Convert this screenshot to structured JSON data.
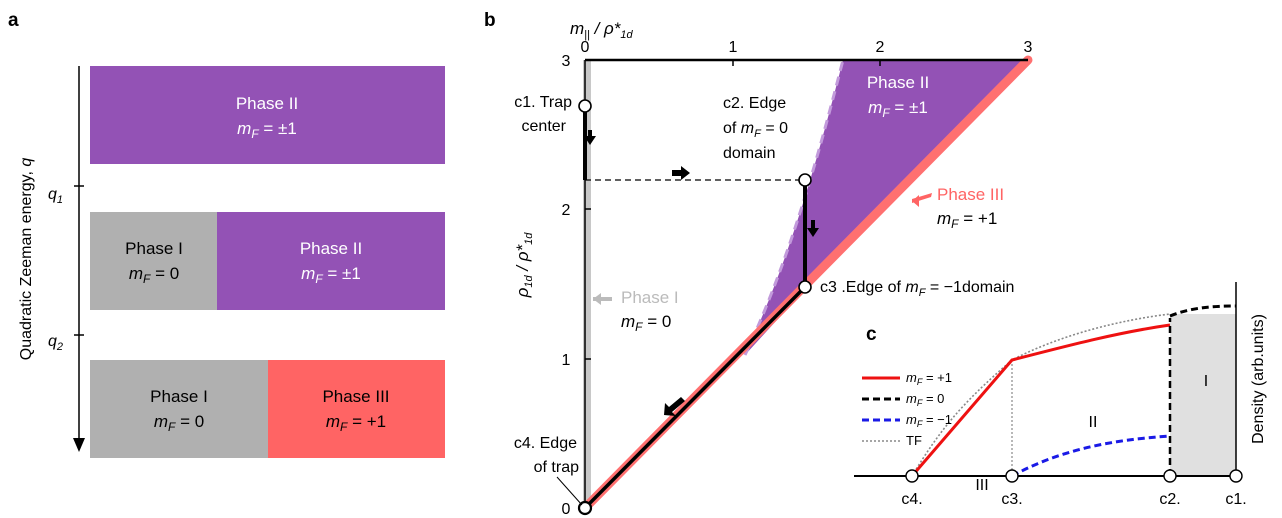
{
  "panel_a": {
    "label": "a",
    "yaxis_label": "Quadratic Zeeman energy, ",
    "yaxis_var": "q",
    "tick_q1": "q",
    "tick_q1_sub": "1",
    "tick_q2": "q",
    "tick_q2_sub": "2",
    "colors": {
      "phase1": "#B0B0B0",
      "phase2": "#9352B5",
      "phase3": "#FF6464"
    },
    "rows": [
      {
        "boxes": [
          {
            "phase": "Phase II",
            "mf_value": "= ±1"
          }
        ]
      },
      {
        "boxes": [
          {
            "phase": "Phase I",
            "mf_value": "= 0"
          },
          {
            "phase": "Phase II",
            "mf_value": "= ±1"
          }
        ]
      },
      {
        "boxes": [
          {
            "phase": "Phase I",
            "mf_value": "= 0"
          },
          {
            "phase": "Phase III",
            "mf_value": "= +1"
          }
        ]
      }
    ]
  },
  "panel_b": {
    "label": "b",
    "xaxis_label": "m",
    "xaxis_label_sub": "||",
    "xaxis_label_rest": " / ρ*",
    "xaxis_label_rest_sub": "1d",
    "yaxis_label": "ρ",
    "yaxis_label_sub": "1d",
    "yaxis_label_rest": " / ρ*",
    "yaxis_label_rest_sub": "1d",
    "xticks": [
      "0",
      "1",
      "2",
      "3"
    ],
    "yticks": [
      "0",
      "1",
      "2",
      "3"
    ],
    "phase2": {
      "name": "Phase II",
      "mf_value": "= ±1"
    },
    "phase3": {
      "name": "Phase III",
      "mf_value": "= +1"
    },
    "phase1": {
      "name": "Phase I",
      "mf_value": "= 0"
    },
    "c1": "c1. Trap",
    "c1b": "center",
    "c2a": "c2. Edge",
    "c2b": "of",
    "c2b_value": "= 0",
    "c2c": "domain",
    "c3": "c3 .Edge of",
    "c3_value": "= −1domain",
    "c4a": "c4. Edge",
    "c4b": "of trap"
  },
  "panel_c": {
    "label": "c",
    "yaxis_label": "Density (arb.units)",
    "legend": [
      {
        "name": "= +1",
        "color": "#EE1111"
      },
      {
        "name": "= 0",
        "color": "#000000"
      },
      {
        "name": "= −1",
        "color": "#1A1AE6"
      },
      {
        "name": "TF",
        "color": "#888888"
      }
    ],
    "regions": [
      "III",
      "II",
      "I"
    ],
    "xlabels": [
      "c4.",
      "c3.",
      "c2.",
      "c1."
    ]
  },
  "mf_symbol": "m",
  "mf_sub": "F"
}
